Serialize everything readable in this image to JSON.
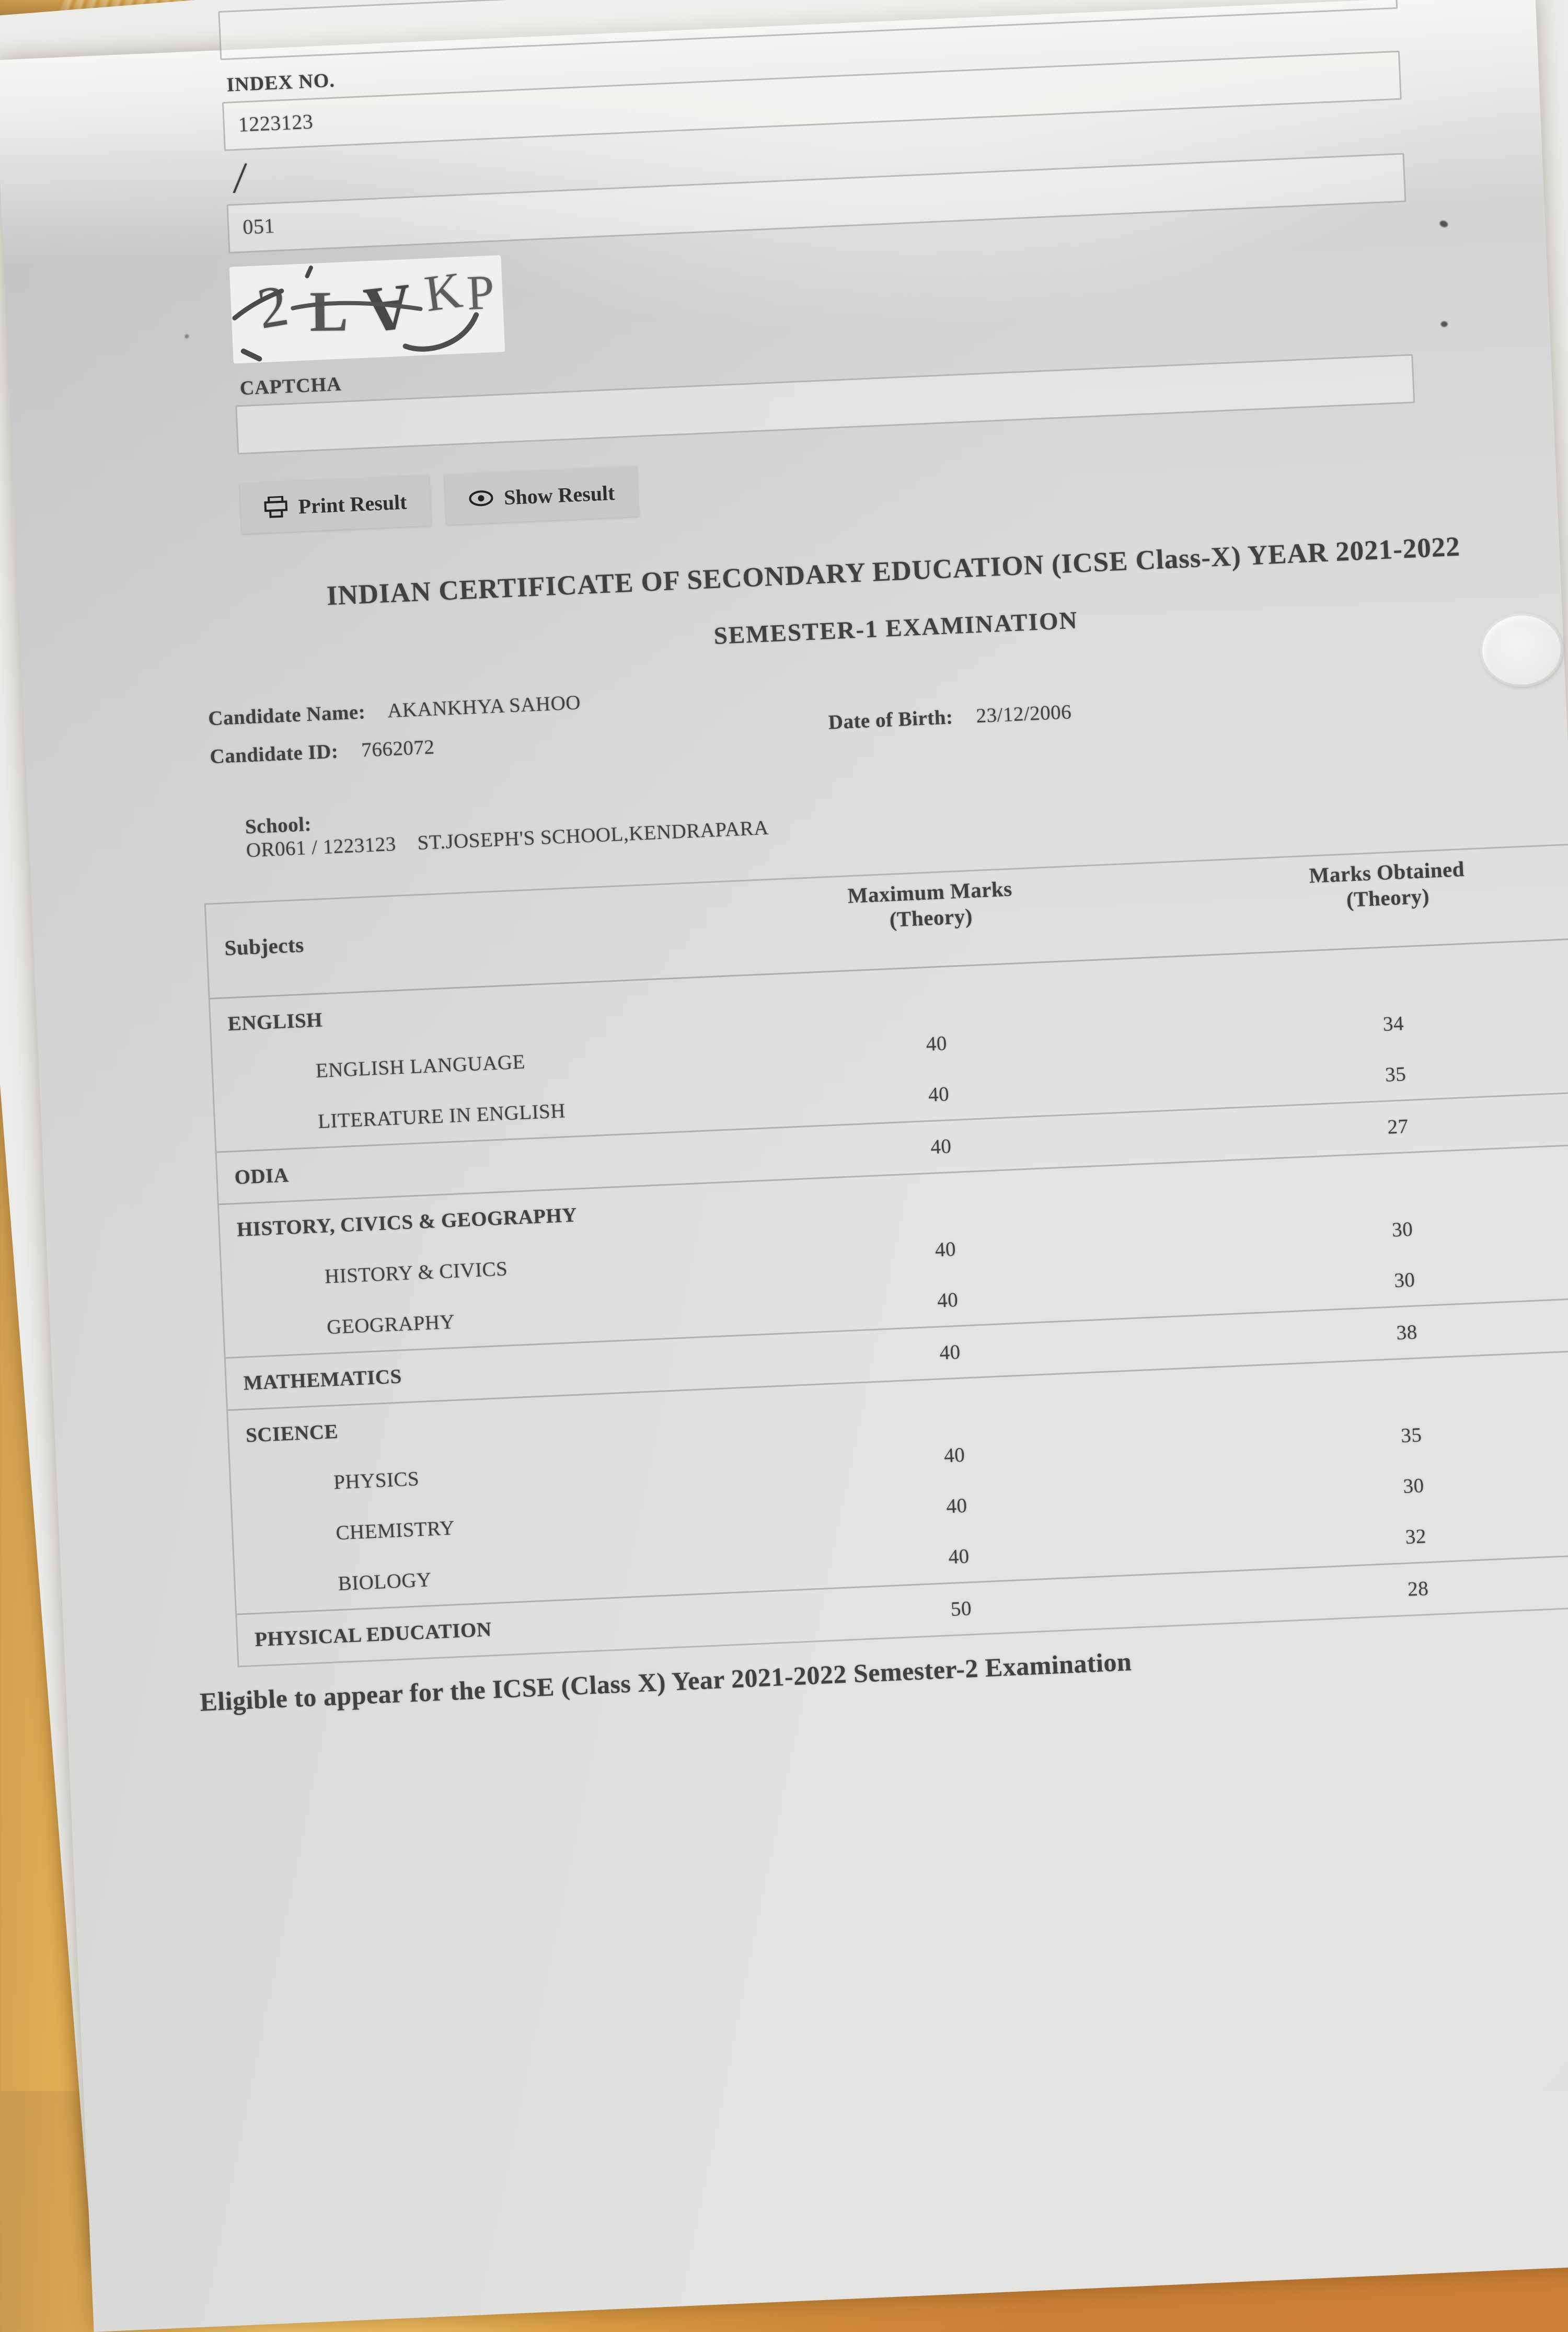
{
  "colors": {
    "desk_orange": "#cc8136",
    "paper_gray": "#e3e3e1",
    "button_gray": "#c8c8c6",
    "ink": "#414143"
  },
  "form": {
    "top_field_value": "",
    "index_label": "INDEX NO.",
    "index_value": "1223123",
    "separator_slash": "/",
    "code_value": "051",
    "captcha_chars": [
      "2",
      "L",
      "A",
      "K",
      "P"
    ],
    "captcha_label": "CAPTCHA",
    "captcha_input_value": "",
    "print_button_label": "Print Result",
    "show_button_label": "Show Result",
    "print_button_icon": "printer-icon",
    "show_button_icon": "eye-icon"
  },
  "result": {
    "title": "INDIAN CERTIFICATE OF SECONDARY EDUCATION (ICSE Class-X) YEAR 2021-2022",
    "subtitle": "SEMESTER-1 EXAMINATION",
    "candidate_name_label": "Candidate Name:",
    "candidate_name": "AKANKHYA SAHOO",
    "candidate_id_label": "Candidate ID:",
    "candidate_id": "7662072",
    "dob_label": "Date of Birth:",
    "dob": "23/12/2006",
    "school_label": "School:",
    "school_value": "OR061 / 1223123    ST.JOSEPH'S SCHOOL,KENDRAPARA",
    "eligibility": "Eligible to appear for the ICSE (Class X) Year 2021-2022 Semester-2 Examination"
  },
  "marks_table": {
    "headers": {
      "subjects": "Subjects",
      "max_line1": "Maximum Marks",
      "max_line2": "(Theory)",
      "obtained_line1": "Marks Obtained",
      "obtained_line2": "(Theory)"
    },
    "sections": [
      {
        "rows": [
          {
            "subject": "ENGLISH",
            "bold": true,
            "indent": false,
            "max": "",
            "obtained": ""
          },
          {
            "subject": "ENGLISH LANGUAGE",
            "bold": false,
            "indent": true,
            "max": "40",
            "obtained": "34"
          },
          {
            "subject": "LITERATURE IN ENGLISH",
            "bold": false,
            "indent": true,
            "max": "40",
            "obtained": "35"
          }
        ]
      },
      {
        "rows": [
          {
            "subject": "ODIA",
            "bold": true,
            "indent": false,
            "max": "40",
            "obtained": "27"
          }
        ]
      },
      {
        "rows": [
          {
            "subject": "HISTORY, CIVICS & GEOGRAPHY",
            "bold": true,
            "indent": false,
            "max": "",
            "obtained": ""
          },
          {
            "subject": "HISTORY & CIVICS",
            "bold": false,
            "indent": true,
            "max": "40",
            "obtained": "30"
          },
          {
            "subject": "GEOGRAPHY",
            "bold": false,
            "indent": true,
            "max": "40",
            "obtained": "30"
          }
        ]
      },
      {
        "rows": [
          {
            "subject": "MATHEMATICS",
            "bold": true,
            "indent": false,
            "max": "40",
            "obtained": "38"
          }
        ]
      },
      {
        "rows": [
          {
            "subject": "SCIENCE",
            "bold": true,
            "indent": false,
            "max": "",
            "obtained": ""
          },
          {
            "subject": "PHYSICS",
            "bold": false,
            "indent": true,
            "max": "40",
            "obtained": "35"
          },
          {
            "subject": "CHEMISTRY",
            "bold": false,
            "indent": true,
            "max": "40",
            "obtained": "30"
          },
          {
            "subject": "BIOLOGY",
            "bold": false,
            "indent": true,
            "max": "40",
            "obtained": "32"
          }
        ]
      },
      {
        "rows": [
          {
            "subject": "PHYSICAL EDUCATION",
            "bold": true,
            "indent": false,
            "max": "50",
            "obtained": "28"
          }
        ]
      }
    ]
  }
}
